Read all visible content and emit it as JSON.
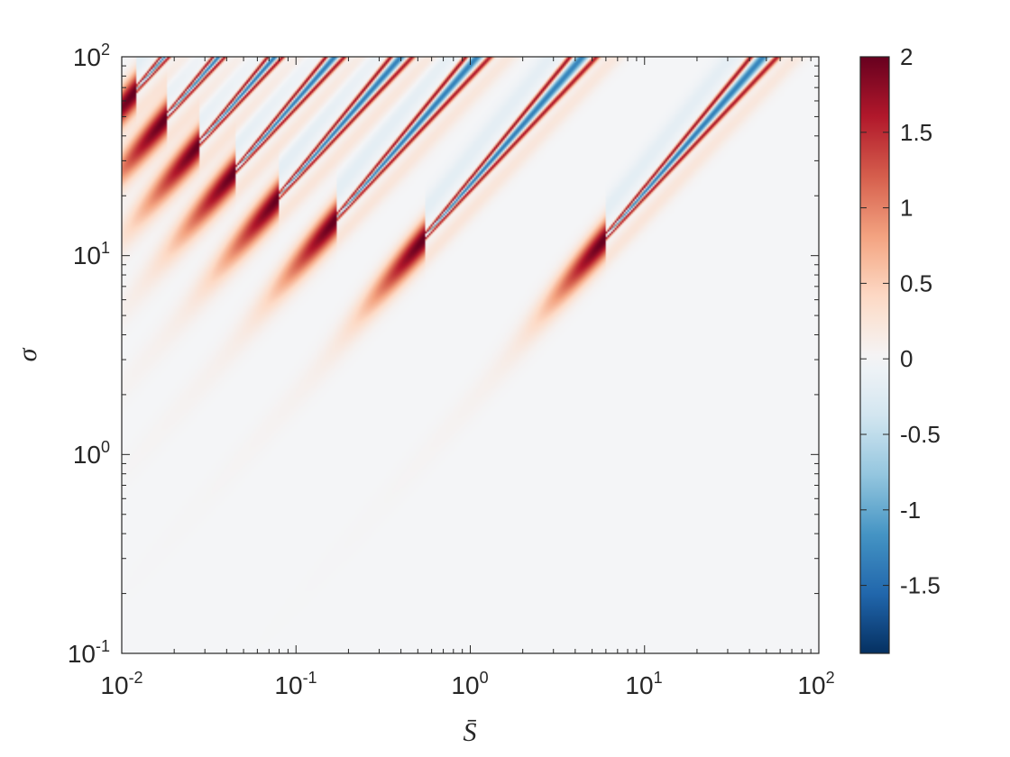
{
  "chart_data": {
    "type": "heatmap",
    "title": "",
    "xlabel": "S̄",
    "ylabel": "σ",
    "x_scale": "log",
    "y_scale": "log",
    "xlim": [
      0.01,
      100
    ],
    "ylim": [
      0.1,
      100
    ],
    "x_ticks": [
      {
        "base": "10",
        "exp": "-2",
        "value": 0.01
      },
      {
        "base": "10",
        "exp": "-1",
        "value": 0.1
      },
      {
        "base": "10",
        "exp": "0",
        "value": 1
      },
      {
        "base": "10",
        "exp": "1",
        "value": 10
      },
      {
        "base": "10",
        "exp": "2",
        "value": 100
      }
    ],
    "y_ticks": [
      {
        "base": "10",
        "exp": "-1",
        "value": 0.1
      },
      {
        "base": "10",
        "exp": "0",
        "value": 1
      },
      {
        "base": "10",
        "exp": "1",
        "value": 10
      },
      {
        "base": "10",
        "exp": "2",
        "value": 100
      }
    ],
    "colorbar": {
      "colormap": "diverging red-white-blue",
      "range": [
        -1.95,
        2
      ],
      "ticks": [
        {
          "label": "2",
          "value": 2
        },
        {
          "label": "1.5",
          "value": 1.5
        },
        {
          "label": "1",
          "value": 1
        },
        {
          "label": "0.5",
          "value": 0.5
        },
        {
          "label": "0",
          "value": 0
        },
        {
          "label": "-0.5",
          "value": -0.5
        },
        {
          "label": "-1",
          "value": -1
        },
        {
          "label": "-1.5",
          "value": -1.5
        }
      ],
      "color_stops": [
        "#053061",
        "#2166ac",
        "#4393c3",
        "#92c5de",
        "#d1e5f0",
        "#f4f5f7",
        "#fddbc7",
        "#f4a582",
        "#d6604d",
        "#b2182b",
        "#67001f"
      ]
    },
    "ridges": [
      {
        "apex_S": 6.0,
        "apex_sigma": 12.5,
        "slope": 1.0,
        "peak": 2.0
      },
      {
        "apex_S": 0.55,
        "apex_sigma": 12.5,
        "slope": 1.0,
        "peak": 2.0
      },
      {
        "apex_S": 0.17,
        "apex_sigma": 15.5,
        "slope": 1.0,
        "peak": 2.0
      },
      {
        "apex_S": 0.08,
        "apex_sigma": 20.0,
        "slope": 1.0,
        "peak": 2.0
      },
      {
        "apex_S": 0.045,
        "apex_sigma": 27.0,
        "slope": 1.0,
        "peak": 2.0
      },
      {
        "apex_S": 0.028,
        "apex_sigma": 37.0,
        "slope": 1.0,
        "peak": 2.0
      },
      {
        "apex_S": 0.018,
        "apex_sigma": 50.0,
        "slope": 1.0,
        "peak": 2.0
      },
      {
        "apex_S": 0.012,
        "apex_sigma": 68.0,
        "slope": 1.0,
        "peak": 2.0
      }
    ],
    "grid": false
  }
}
